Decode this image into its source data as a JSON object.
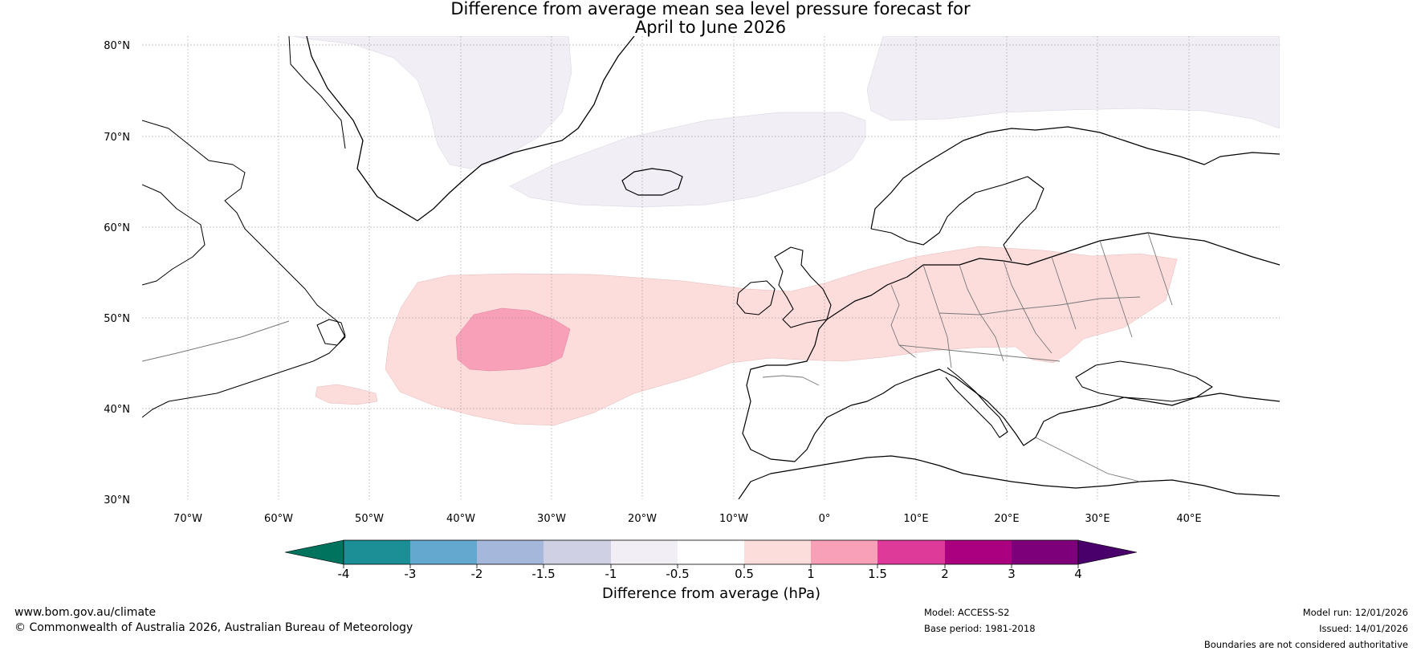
{
  "title": {
    "line1": "Difference from average mean sea level pressure forecast for",
    "line2": "April to June 2026"
  },
  "map": {
    "lat_labels": [
      "80°N",
      "70°N",
      "60°N",
      "50°N",
      "40°N",
      "30°N"
    ],
    "lon_labels": [
      "70°W",
      "60°W",
      "50°W",
      "40°W",
      "30°W",
      "20°W",
      "10°W",
      "0°",
      "10°E",
      "20°E",
      "30°E",
      "40°E"
    ],
    "lon_range": [
      -75,
      50
    ],
    "lat_range": [
      30,
      81
    ],
    "regions": [
      {
        "name": "Greenland Sea / Arctic weak negative anomaly",
        "category": "-1 to -0.5"
      },
      {
        "name": "Iceland–Norwegian Sea weak negative anomaly",
        "category": "-1 to -0.5"
      },
      {
        "name": "Barents Sea weak negative anomaly",
        "category": "-1 to -0.5"
      },
      {
        "name": "North Atlantic–Europe positive anomaly",
        "category": "0.5 to 1"
      },
      {
        "name": "Mid-Atlantic core positive anomaly",
        "category": "1 to 1.5"
      }
    ]
  },
  "legend": {
    "title": "Difference from average (hPa)",
    "tick_labels": [
      "-4",
      "-3",
      "-2",
      "-1.5",
      "-1",
      "-0.5",
      "0.5",
      "1",
      "1.5",
      "2",
      "3",
      "4"
    ],
    "colors": {
      "below_min": "#00735e",
      "bins": [
        "#1c8f96",
        "#64a8d0",
        "#a5b7da",
        "#cfd0e3",
        "#f2eef5",
        "#ffffff",
        "#fddcdc",
        "#f8a0b8",
        "#dd3a9a",
        "#ab0080",
        "#7d007a"
      ],
      "above_max": "#4a006a"
    }
  },
  "colors": {
    "neg_weak": "#f2eef5",
    "pos_weak": "#fddcdc",
    "pos_mid": "#f8a0b8",
    "coast": "#000000",
    "border": "#777777",
    "grid": "#999999"
  },
  "footer": {
    "url": "www.bom.gov.au/climate",
    "copyright": "© Commonwealth of Australia 2026, Australian Bureau of Meteorology",
    "model": "Model: ACCESS-S2",
    "base_period": "Base period: 1981-2018",
    "model_run": "Model run: 12/01/2026",
    "issued": "Issued: 14/01/2026",
    "disclaimer": "Boundaries are not considered authoritative"
  }
}
